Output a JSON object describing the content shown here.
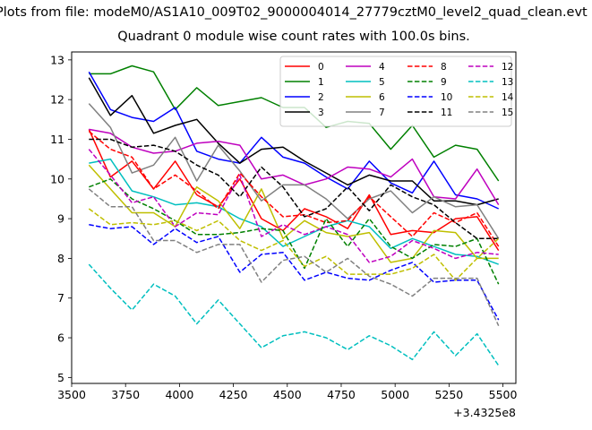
{
  "header": {
    "filename": "Plots from file: modeM0/AS1A10_009T02_9000004014_27779cztM0_level2_quad_clean.evt"
  },
  "chart_data": {
    "type": "line",
    "title": "Quadrant 0 module wise count rates with 100.0s bins.",
    "xlabel": "",
    "ylabel": "",
    "x_offset_label": "+3.4325e8",
    "xlim": [
      3500,
      5560
    ],
    "ylim": [
      4.85,
      13.2
    ],
    "xticks": [
      3500,
      3750,
      4000,
      4250,
      4500,
      4750,
      5000,
      5250,
      5500
    ],
    "yticks": [
      5,
      6,
      7,
      8,
      9,
      10,
      11,
      12,
      13
    ],
    "grid": false,
    "legend": "top-right, 4 columns",
    "x": [
      3580,
      3680,
      3780,
      3880,
      3980,
      4080,
      4180,
      4280,
      4380,
      4480,
      4580,
      4680,
      4780,
      4880,
      4980,
      5080,
      5180,
      5280,
      5380,
      5480
    ],
    "series": [
      {
        "name": "0",
        "color": "#ff0000",
        "dash": "solid",
        "values": [
          11.25,
          10.05,
          10.45,
          9.75,
          10.45,
          9.6,
          9.3,
          10.0,
          9.0,
          8.7,
          9.25,
          9.05,
          8.75,
          9.6,
          8.6,
          8.7,
          8.65,
          9.0,
          9.05,
          8.2
        ]
      },
      {
        "name": "1",
        "color": "#008000",
        "dash": "solid",
        "values": [
          12.65,
          12.65,
          12.85,
          12.7,
          11.75,
          12.3,
          11.85,
          11.95,
          12.05,
          11.8,
          11.8,
          11.3,
          11.45,
          11.4,
          10.75,
          11.35,
          10.55,
          10.85,
          10.75,
          9.95
        ]
      },
      {
        "name": "2",
        "color": "#0000ff",
        "dash": "solid",
        "values": [
          12.7,
          11.75,
          11.55,
          11.45,
          11.8,
          10.7,
          10.5,
          10.4,
          11.05,
          10.55,
          10.4,
          10.05,
          9.75,
          10.45,
          9.9,
          9.65,
          10.45,
          9.6,
          9.5,
          9.25
        ]
      },
      {
        "name": "3",
        "color": "#000000",
        "dash": "solid",
        "values": [
          12.55,
          11.6,
          12.1,
          11.15,
          11.35,
          11.5,
          10.9,
          10.4,
          10.75,
          10.8,
          10.45,
          10.15,
          9.85,
          10.1,
          9.95,
          9.95,
          9.45,
          9.45,
          9.35,
          9.5
        ]
      },
      {
        "name": "4",
        "color": "#bf00bf",
        "dash": "solid",
        "values": [
          11.25,
          11.15,
          10.8,
          10.65,
          10.7,
          10.9,
          10.95,
          10.85,
          10.0,
          10.1,
          9.85,
          10.0,
          10.3,
          10.25,
          10.05,
          10.5,
          9.55,
          9.5,
          10.25,
          9.35
        ]
      },
      {
        "name": "5",
        "color": "#00bfbf",
        "dash": "solid",
        "values": [
          10.4,
          10.5,
          9.7,
          9.55,
          9.35,
          9.4,
          9.3,
          9.0,
          8.8,
          8.3,
          8.55,
          8.8,
          8.95,
          8.8,
          8.25,
          8.5,
          8.3,
          8.1,
          8.05,
          7.85
        ]
      },
      {
        "name": "6",
        "color": "#bfbf00",
        "dash": "solid",
        "values": [
          10.35,
          9.75,
          9.15,
          9.15,
          8.8,
          9.8,
          9.45,
          8.75,
          9.75,
          8.5,
          8.95,
          8.65,
          8.55,
          8.65,
          7.9,
          8.0,
          8.7,
          8.65,
          8.0,
          8.0
        ]
      },
      {
        "name": "7",
        "color": "#808080",
        "dash": "solid",
        "values": [
          11.9,
          11.3,
          10.15,
          10.35,
          11.05,
          9.95,
          10.85,
          10.2,
          9.45,
          9.85,
          9.85,
          9.5,
          9.0,
          9.5,
          9.7,
          9.15,
          9.55,
          9.3,
          9.35,
          8.5
        ]
      },
      {
        "name": "8",
        "color": "#ff0000",
        "dash": "dashed",
        "values": [
          11.2,
          10.75,
          10.55,
          9.75,
          10.1,
          9.7,
          9.25,
          10.15,
          9.55,
          9.05,
          9.1,
          8.9,
          8.95,
          9.55,
          9.05,
          8.55,
          9.15,
          8.9,
          9.15,
          8.3
        ]
      },
      {
        "name": "9",
        "color": "#008000",
        "dash": "dashed",
        "values": [
          9.8,
          10.0,
          9.5,
          9.25,
          8.95,
          8.6,
          8.6,
          8.65,
          8.75,
          8.7,
          7.75,
          9.0,
          8.3,
          9.0,
          8.3,
          8.0,
          8.35,
          8.3,
          8.5,
          7.35
        ]
      },
      {
        "name": "10",
        "color": "#0000ff",
        "dash": "dashed",
        "values": [
          8.85,
          8.75,
          8.8,
          8.35,
          8.75,
          8.4,
          8.55,
          7.65,
          8.1,
          8.15,
          7.45,
          7.65,
          7.5,
          7.45,
          7.7,
          7.9,
          7.4,
          7.45,
          7.45,
          6.45
        ]
      },
      {
        "name": "11",
        "color": "#000000",
        "dash": "dashed",
        "values": [
          11.0,
          11.0,
          10.8,
          10.85,
          10.7,
          10.35,
          10.1,
          9.55,
          10.3,
          9.8,
          9.05,
          9.25,
          9.8,
          9.2,
          9.85,
          9.55,
          9.35,
          8.9,
          8.5,
          8.5
        ]
      },
      {
        "name": "12",
        "color": "#bf00bf",
        "dash": "dashed",
        "values": [
          10.75,
          10.1,
          9.4,
          9.55,
          8.8,
          9.15,
          9.1,
          10.1,
          8.55,
          8.85,
          8.6,
          8.8,
          8.6,
          7.9,
          8.05,
          8.45,
          8.25,
          8.0,
          8.15,
          8.1
        ]
      },
      {
        "name": "13",
        "color": "#00bfbf",
        "dash": "dashed",
        "values": [
          7.85,
          7.25,
          6.7,
          7.35,
          7.05,
          6.35,
          6.95,
          6.35,
          5.75,
          6.05,
          6.15,
          6.0,
          5.7,
          6.05,
          5.8,
          5.45,
          6.15,
          5.55,
          6.1,
          5.3
        ]
      },
      {
        "name": "14",
        "color": "#bfbf00",
        "dash": "dashed",
        "values": [
          9.25,
          8.85,
          8.9,
          8.85,
          8.95,
          8.7,
          8.95,
          8.45,
          8.2,
          8.45,
          7.8,
          8.05,
          7.6,
          7.6,
          7.6,
          7.75,
          8.1,
          7.45,
          8.0,
          8.5
        ]
      },
      {
        "name": "15",
        "color": "#808080",
        "dash": "dashed",
        "values": [
          9.75,
          9.3,
          9.3,
          8.45,
          8.45,
          8.15,
          8.35,
          8.35,
          7.4,
          7.95,
          8.05,
          7.65,
          8.0,
          7.55,
          7.35,
          7.05,
          7.5,
          7.5,
          7.5,
          6.3
        ]
      }
    ]
  }
}
